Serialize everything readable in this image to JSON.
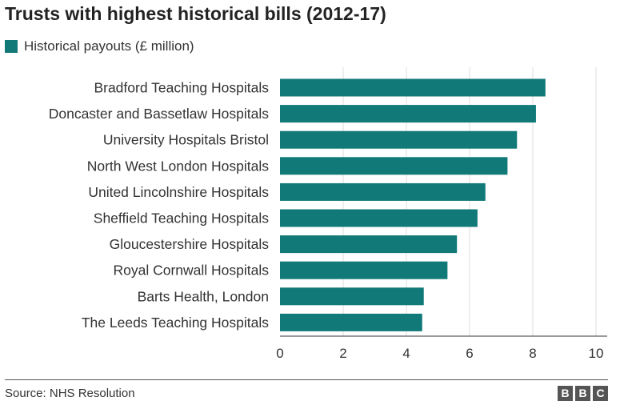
{
  "title": "Trusts with highest historical bills (2012-17)",
  "legend_label": "Historical payouts (£ million)",
  "source": "Source: NHS Resolution",
  "logo_letters": [
    "B",
    "B",
    "C"
  ],
  "colors": {
    "bar": "#117a78",
    "grid": "#dddddd",
    "axis": "#333333"
  },
  "chart_data": {
    "type": "bar",
    "orientation": "horizontal",
    "title": "Trusts with highest historical bills (2012-17)",
    "xlabel": "",
    "ylabel": "",
    "xlim": [
      0,
      10
    ],
    "xticks": [
      0,
      2,
      4,
      6,
      8,
      10
    ],
    "grid": true,
    "legend_position": "top-left",
    "categories": [
      "Bradford Teaching Hospitals",
      "Doncaster and Bassetlaw Hospitals",
      "University Hospitals Bristol",
      "North West London Hospitals",
      "United Lincolnshire Hospitals",
      "Sheffield Teaching Hospitals",
      "Gloucestershire Hospitals",
      "Royal Cornwall Hospitals",
      "Barts Health, London",
      "The Leeds Teaching Hospitals"
    ],
    "series": [
      {
        "name": "Historical payouts (£ million)",
        "values": [
          8.4,
          8.1,
          7.5,
          7.2,
          6.5,
          6.25,
          5.6,
          5.3,
          4.55,
          4.5
        ]
      }
    ]
  }
}
